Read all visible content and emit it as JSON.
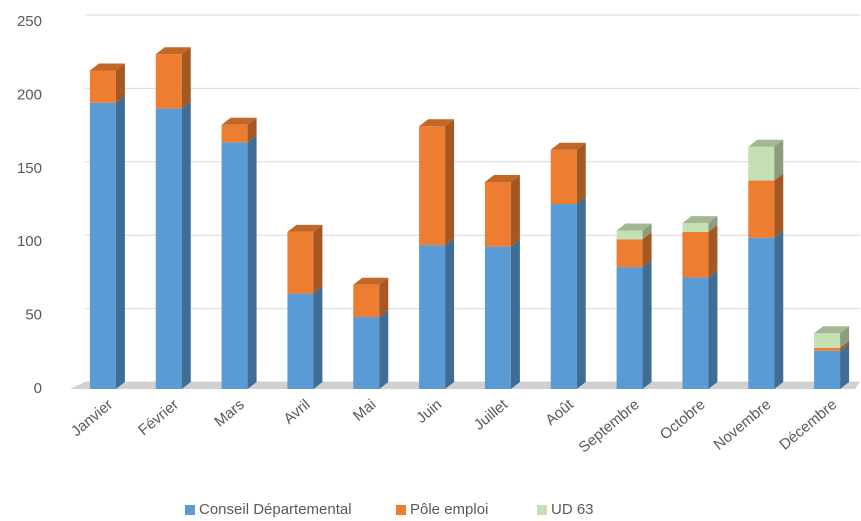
{
  "chart_data": {
    "type": "bar",
    "stacked": true,
    "categories": [
      "Janvier",
      "Février",
      "Mars",
      "Avril",
      "Mai",
      "Juin",
      "Juillet",
      "Août",
      "Septembre",
      "Octobre",
      "Novembre",
      "Décembre"
    ],
    "series": [
      {
        "name": "Conseil Départemental",
        "color": "#5b9bd5",
        "values": [
          195,
          191,
          168,
          65,
          49,
          98,
          97,
          126,
          83,
          76,
          103,
          26
        ]
      },
      {
        "name": "Pôle emploi",
        "color": "#ed7d31",
        "values": [
          22,
          37,
          12,
          42,
          22,
          81,
          44,
          37,
          19,
          31,
          39,
          2
        ]
      },
      {
        "name": "UD 63",
        "color": "#c5e0b4",
        "values": [
          0,
          0,
          0,
          0,
          0,
          0,
          0,
          0,
          6,
          6,
          23,
          10
        ]
      }
    ],
    "ylim": [
      0,
      250
    ],
    "yticks": [
      0,
      50,
      100,
      150,
      200,
      250
    ],
    "grid": true,
    "legend": "bottom"
  }
}
